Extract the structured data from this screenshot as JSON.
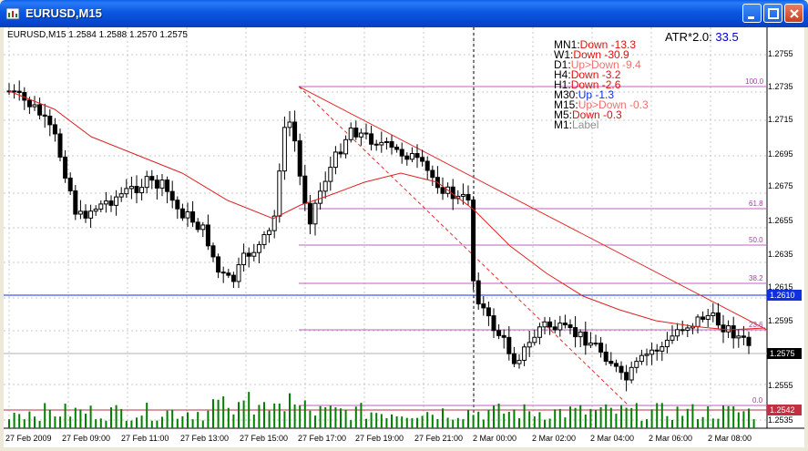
{
  "window": {
    "title": "EURUSD,M15"
  },
  "chart": {
    "symbol_info": "EURUSD,M15  1.2584 1.2588 1.2570 1.2575",
    "atr_label": "ATR*2.0:",
    "atr_value": "33.5",
    "timeframes": [
      {
        "name": "MN1:",
        "status": "Down -13.3",
        "color": "#e01010"
      },
      {
        "name": "W1:",
        "status": "Down -30.9",
        "color": "#e01010"
      },
      {
        "name": "D1:",
        "status": "Up>Down -9.4",
        "color": "#f07070"
      },
      {
        "name": "H4:",
        "status": "Down -3.2",
        "color": "#e01010"
      },
      {
        "name": "H1:",
        "status": "Down -2.6",
        "color": "#e01010"
      },
      {
        "name": "M30:",
        "status": "Up -1.3",
        "color": "#1030e0"
      },
      {
        "name": "M15:",
        "status": "Up>Down -0.3",
        "color": "#f07070"
      },
      {
        "name": "M5:",
        "status": "Down -0.3",
        "color": "#e01010"
      },
      {
        "name": "M1:",
        "status": "Label",
        "color": "#909090"
      }
    ],
    "price_scale": [
      "1.2755",
      "1.2735",
      "1.2715",
      "1.2695",
      "1.2675",
      "1.2655",
      "1.2635",
      "1.2615",
      "1.2595",
      "1.2555",
      "1.2535"
    ],
    "price_boxes": [
      {
        "text": "1.2610",
        "bg": "#1030e0",
        "fg": "#ffffff"
      },
      {
        "text": "1.2575",
        "bg": "#000000",
        "fg": "#ffffff"
      },
      {
        "text": "1.2542",
        "bg": "#c03040",
        "fg": "#ffffff"
      }
    ],
    "time_labels": [
      "27 Feb 2009",
      "27 Feb 09:00",
      "27 Feb 11:00",
      "27 Feb 13:00",
      "27 Feb 15:00",
      "27 Feb 17:00",
      "27 Feb 19:00",
      "27 Feb 21:00",
      "2 Mar 00:00",
      "2 Mar 02:00",
      "2 Mar 04:00",
      "2 Mar 06:00",
      "2 Mar 08:00"
    ],
    "fib_levels": [
      "100.0",
      "61.8",
      "50.0",
      "38.2",
      "23.6",
      "0.0"
    ],
    "colors": {
      "fib": "#c060c0",
      "ma": "#e02020",
      "volume": "#008000",
      "hline": "#1030e0"
    }
  }
}
